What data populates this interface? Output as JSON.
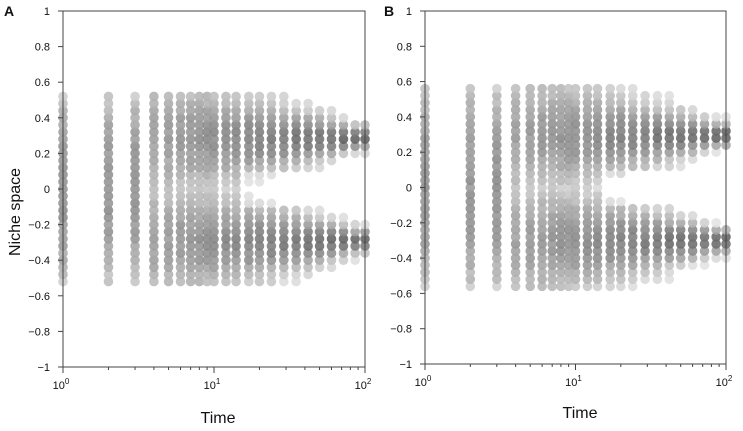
{
  "chart_data": [
    {
      "type": "scatter",
      "panel_label": "A",
      "xlabel": "Time",
      "ylabel": "Niche space",
      "x_scale": "log",
      "xlim": [
        1,
        100
      ],
      "ylim": [
        -1,
        1
      ],
      "grid": false,
      "x_ticks": [
        {
          "base": "10",
          "exp": "0"
        },
        {
          "base": "10",
          "exp": "1"
        },
        {
          "base": "10",
          "exp": "2"
        }
      ],
      "y_tick_labels": [
        "1",
        "0.8",
        "0.6",
        "0.4",
        "0.2",
        "0",
        "−0.2",
        "−0.4",
        "−0.6",
        "−0.8",
        "−1"
      ],
      "colors": {
        "point_light": "#e6e6e6",
        "point_dark": "#505050"
      },
      "description_series": [
        {
          "x_start": 1,
          "x_end": 3,
          "y_range": [
            -0.52,
            0.52
          ],
          "spacing": 0.04
        },
        {
          "x_start": 10,
          "x_end": 100,
          "branch_centers": [
            0.29,
            -0.29
          ],
          "converged_spread": 0.04
        }
      ],
      "time_points": [
        1,
        2,
        3,
        4,
        5,
        6,
        7,
        8,
        9,
        10,
        12,
        14,
        17,
        20,
        24,
        29,
        35,
        42,
        50,
        60,
        72,
        86,
        100
      ],
      "seed": 7
    },
    {
      "type": "scatter",
      "panel_label": "B",
      "xlabel": "Time",
      "ylabel": "",
      "x_scale": "log",
      "xlim": [
        1,
        100
      ],
      "ylim": [
        -1,
        1
      ],
      "grid": false,
      "x_ticks": [
        {
          "base": "10",
          "exp": "0"
        },
        {
          "base": "10",
          "exp": "1"
        },
        {
          "base": "10",
          "exp": "2"
        }
      ],
      "y_tick_labels": [
        "1",
        "0.8",
        "0.6",
        "0.4",
        "0.2",
        "0",
        "−0.2",
        "−0.4",
        "−0.6",
        "−0.8",
        "−1"
      ],
      "colors": {
        "point_light": "#e6e6e6",
        "point_dark": "#505050"
      },
      "description_series": [
        {
          "x_start": 1,
          "x_end": 3,
          "y_range": [
            -0.56,
            0.56
          ],
          "spacing": 0.04
        },
        {
          "x_start": 10,
          "x_end": 100,
          "branch_centers": [
            0.3,
            -0.3
          ],
          "converged_spread": 0.04
        }
      ],
      "time_points": [
        1,
        2,
        3,
        4,
        5,
        6,
        7,
        8,
        9,
        10,
        12,
        14,
        17,
        20,
        24,
        29,
        35,
        42,
        50,
        60,
        72,
        86,
        100
      ],
      "seed": 13
    }
  ]
}
